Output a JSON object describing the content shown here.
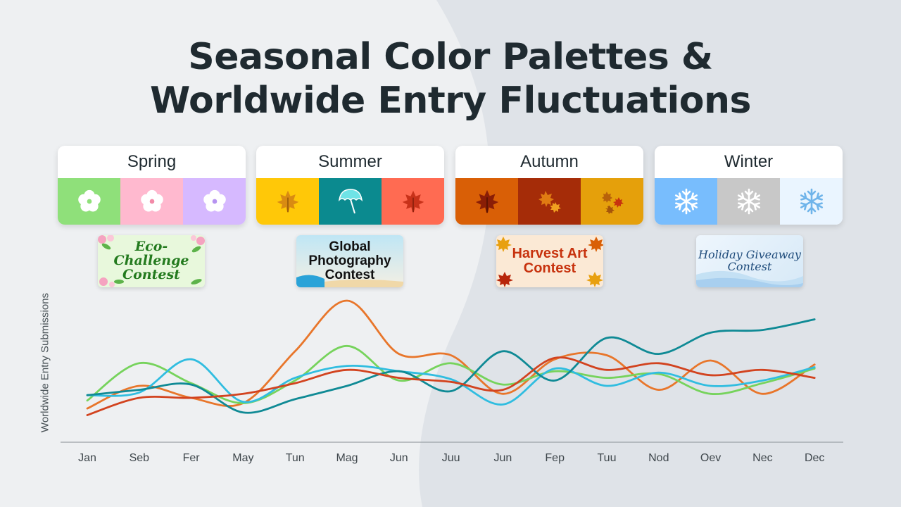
{
  "title_line1": "Seasonal Color Palettes &",
  "title_line2": "Worldwide Entry Fluctuations",
  "seasons": [
    {
      "name": "Spring",
      "colors": [
        "#8fe07a",
        "#ffb9cf",
        "#d6b9ff"
      ],
      "icons": [
        "blossom-icon",
        "blossom-icon",
        "blossom-icon"
      ]
    },
    {
      "name": "Summer",
      "colors": [
        "#ffc808",
        "#0b8a8f",
        "#ff6b52"
      ],
      "icons": [
        "maple-leaf-icon",
        "umbrella-icon",
        "maple-leaf-icon"
      ]
    },
    {
      "name": "Autumn",
      "colors": [
        "#d95f06",
        "#a52c08",
        "#e5a00b"
      ],
      "icons": [
        "maple-leaf-icon",
        "leaves-icon",
        "leaves-icon"
      ]
    },
    {
      "name": "Winter",
      "colors": [
        "#78bdfd",
        "#c8c8c8",
        "#eaf5ff"
      ],
      "icons": [
        "snowflake-icon",
        "snowflake-icon",
        "snowflake-icon"
      ]
    }
  ],
  "contests": [
    {
      "line1": "Eco-Challenge",
      "line2": "Contest"
    },
    {
      "line1": "Global",
      "line2": "Photography",
      "line3": "Contest"
    },
    {
      "line1": "Harvest Art",
      "line2": "Contest"
    },
    {
      "line1": "Holiday Giveaway",
      "line2": "Contest"
    }
  ],
  "chart_data": {
    "type": "line",
    "ylabel": "Worldwide Entry Submissions",
    "xlabel": "",
    "categories": [
      "Jan",
      "Seb",
      "Fer",
      "May",
      "Tun",
      "Mag",
      "Jun",
      "Juu",
      "Jun",
      "Fep",
      "Tuu",
      "Nod",
      "Oev",
      "Nec",
      "Dec"
    ],
    "ylim": [
      0,
      100
    ],
    "grid": false,
    "series": [
      {
        "color": "#e8762b",
        "values": [
          19,
          36,
          27,
          23,
          62,
          100,
          60,
          59,
          30,
          56,
          59,
          33,
          55,
          30,
          52
        ]
      },
      {
        "color": "#76d35c",
        "values": [
          25,
          53,
          38,
          23,
          40,
          66,
          40,
          53,
          37,
          47,
          42,
          45,
          30,
          38,
          49
        ]
      },
      {
        "color": "#30bde0",
        "values": [
          29,
          31,
          56,
          24,
          42,
          51,
          47,
          41,
          22,
          49,
          36,
          46,
          36,
          40,
          50
        ]
      },
      {
        "color": "#0f8a95",
        "values": [
          29,
          33,
          37,
          16,
          26,
          36,
          47,
          32,
          62,
          40,
          72,
          60,
          76,
          78,
          86
        ]
      },
      {
        "color": "#d2431f",
        "values": [
          14,
          27,
          27,
          30,
          38,
          48,
          42,
          39,
          33,
          57,
          48,
          53,
          44,
          48,
          42
        ]
      }
    ]
  }
}
